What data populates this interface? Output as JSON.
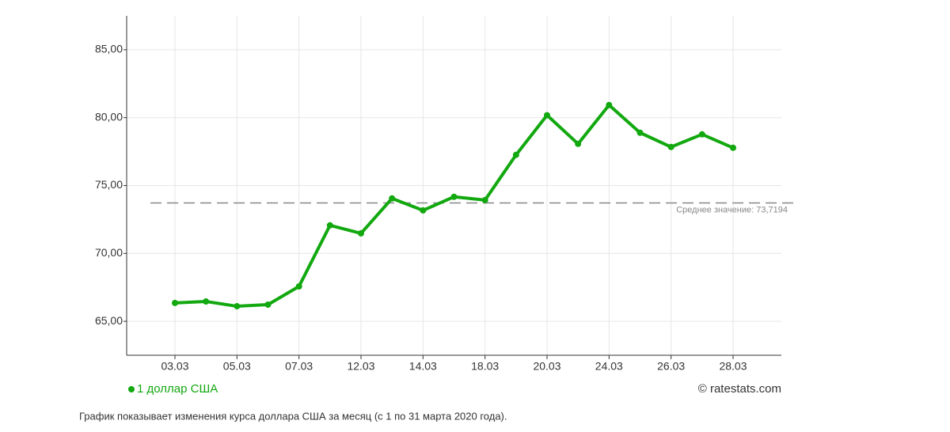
{
  "chart_data": {
    "type": "line",
    "categories": [
      "03.03",
      null,
      "05.03",
      null,
      "07.03",
      null,
      "12.03",
      null,
      "14.03",
      null,
      "18.03",
      null,
      "20.03",
      null,
      "24.03",
      null,
      "26.03",
      null,
      "28.03"
    ],
    "series": [
      {
        "name": "1 доллар США",
        "color": "#12a80f",
        "values": [
          66.35,
          66.46,
          66.11,
          66.23,
          67.57,
          72.07,
          71.48,
          74.05,
          73.17,
          74.17,
          73.93,
          77.26,
          80.18,
          78.07,
          80.93,
          78.89,
          77.84,
          78.77,
          77.78
        ]
      }
    ],
    "ylim": [
      62.5,
      87.5
    ],
    "yticks": [
      {
        "value": 65,
        "label": "65,00"
      },
      {
        "value": 70,
        "label": "70,00"
      },
      {
        "value": 75,
        "label": "75,00"
      },
      {
        "value": 80,
        "label": "80,00"
      },
      {
        "value": 85,
        "label": "85,00"
      }
    ],
    "grid": true,
    "average": {
      "value": 73.7194,
      "label": "Среднее значение: 73,7194"
    },
    "credit": "© ratestats.com",
    "caption": "График показывает изменения курса доллара США за месяц (с 1 по 31 марта 2020 года)."
  }
}
